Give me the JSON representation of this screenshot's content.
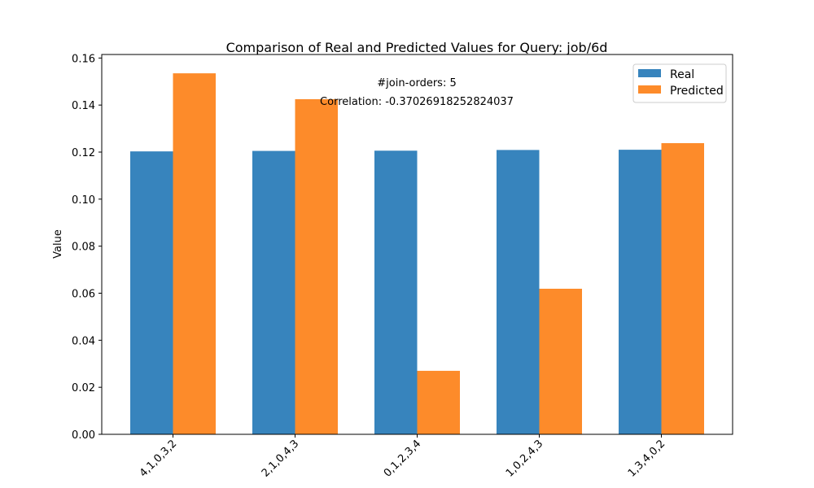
{
  "chart_data": {
    "type": "bar",
    "title": "Comparison of Real and Predicted Values for Query: job/6d",
    "xlabel": "",
    "ylabel": "Value",
    "categories": [
      "4,1,0,3,2",
      "2,1,0,4,3",
      "0,1,2,3,4",
      "1,0,2,4,3",
      "1,3,4,0,2"
    ],
    "series": [
      {
        "name": "Real",
        "color": "#3784bd",
        "values": [
          0.1203,
          0.1205,
          0.1206,
          0.1209,
          0.121
        ]
      },
      {
        "name": "Predicted",
        "color": "#fd8b2a",
        "values": [
          0.1535,
          0.1425,
          0.027,
          0.0619,
          0.1238
        ]
      }
    ],
    "ylim": [
      0,
      0.1615
    ],
    "yticks": [
      0.0,
      0.02,
      0.04,
      0.06,
      0.08,
      0.1,
      0.12,
      0.14,
      0.16
    ],
    "ytick_labels": [
      "0.00",
      "0.02",
      "0.04",
      "0.06",
      "0.08",
      "0.10",
      "0.12",
      "0.14",
      "0.16"
    ],
    "annotations": [
      "#join-orders: 5",
      "Correlation: -0.37026918252824037"
    ],
    "legend_position": "top-right",
    "grid": false
  }
}
